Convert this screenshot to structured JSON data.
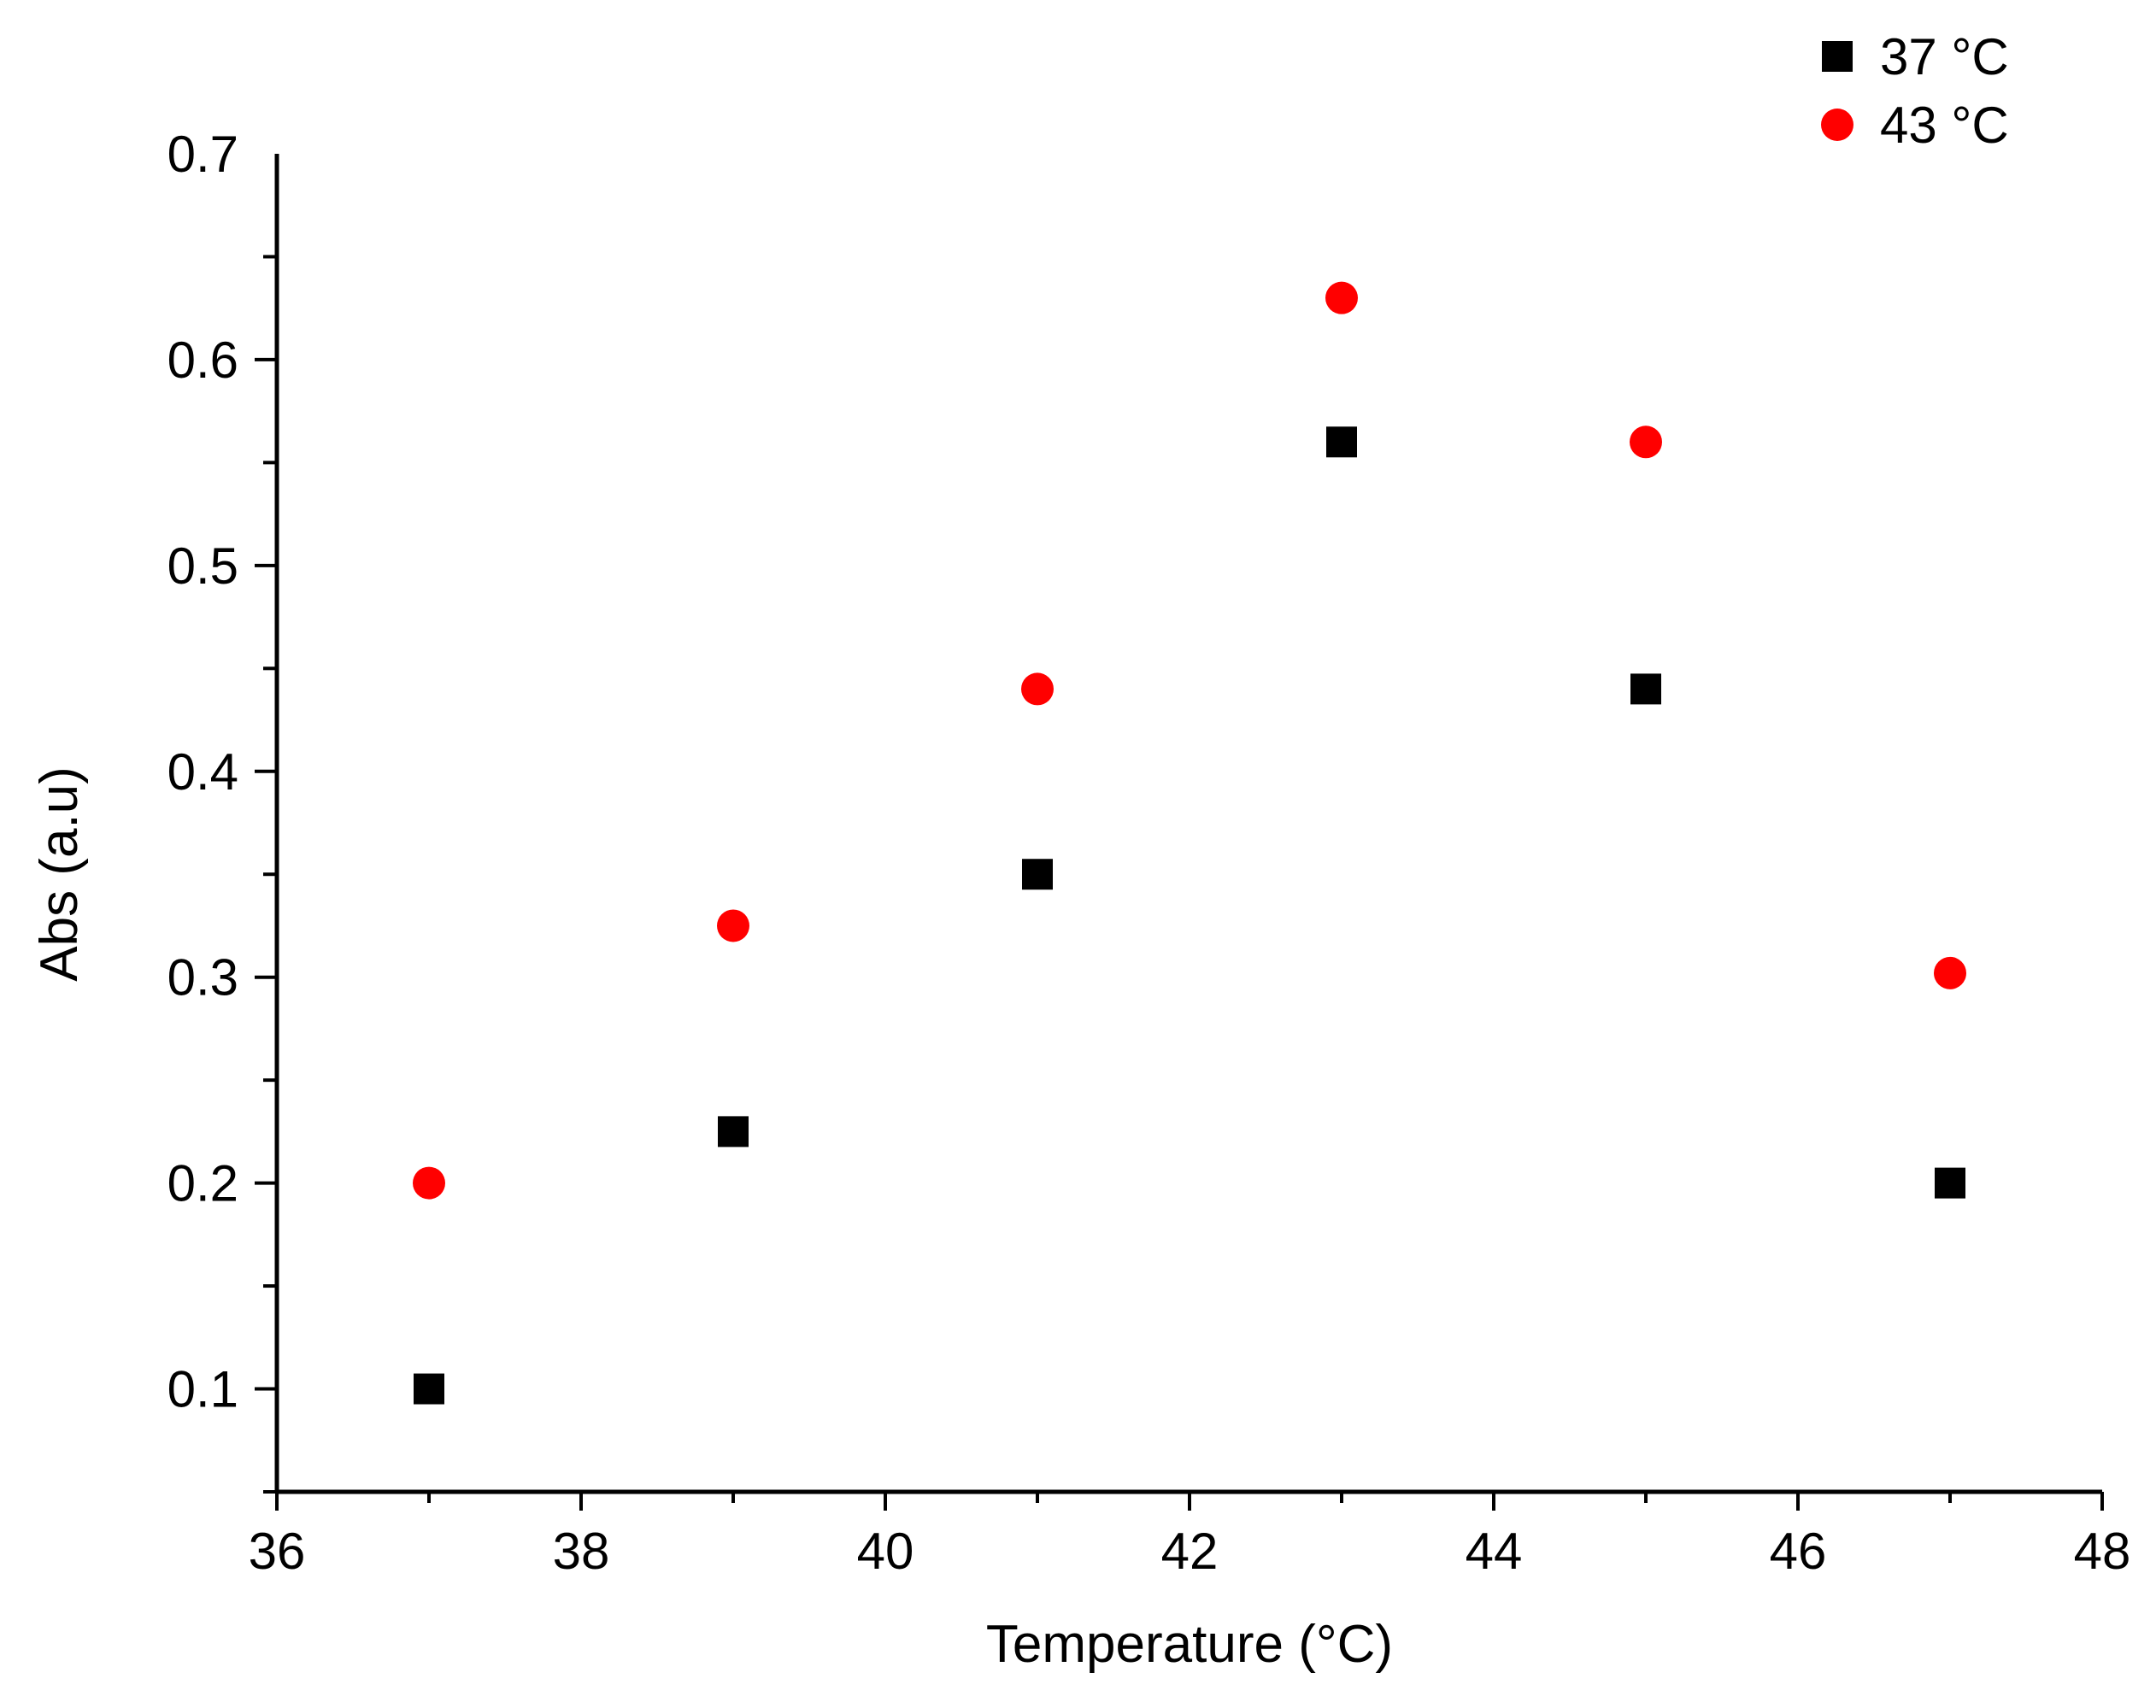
{
  "chart_data": {
    "type": "scatter",
    "title": "",
    "xlabel": "Temperature (°C)",
    "ylabel": "Abs (a.u)",
    "xlim": [
      36,
      48
    ],
    "ylim": [
      0.05,
      0.7
    ],
    "x_ticks": [
      36,
      38,
      40,
      42,
      44,
      46,
      48
    ],
    "x_tick_labels": [
      "36",
      "38",
      "40",
      "42",
      "44",
      "46",
      "48"
    ],
    "y_ticks": [
      0.1,
      0.2,
      0.3,
      0.4,
      0.5,
      0.6,
      0.7
    ],
    "y_tick_labels": [
      "0.1",
      "0.2",
      "0.3",
      "0.4",
      "0.5",
      "0.6",
      "0.7"
    ],
    "grid": false,
    "legend_position": "top-right",
    "series": [
      {
        "name": "37 °C",
        "marker": "square",
        "color": "#000000",
        "x": [
          37,
          39,
          41,
          43,
          45,
          47
        ],
        "y": [
          0.1,
          0.225,
          0.35,
          0.56,
          0.44,
          0.2
        ]
      },
      {
        "name": "43 °C",
        "marker": "circle",
        "color": "#ff0000",
        "x": [
          37,
          39,
          41,
          43,
          45,
          47
        ],
        "y": [
          0.2,
          0.325,
          0.44,
          0.63,
          0.56,
          0.302
        ]
      }
    ]
  }
}
